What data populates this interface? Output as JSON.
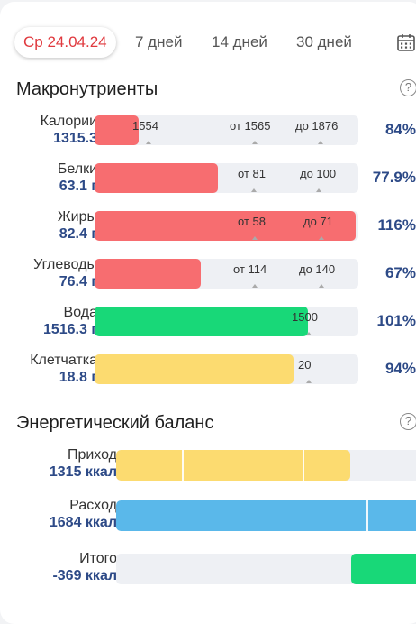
{
  "tabs": [
    {
      "label": "Ср 24.04.24",
      "active": true
    },
    {
      "label": "7 дней"
    },
    {
      "label": "14 дней"
    },
    {
      "label": "30 дней"
    }
  ],
  "macros": {
    "title": "Макронутриенты",
    "help": "?",
    "rows": [
      {
        "name": "Калории",
        "value": "1315.3",
        "percent": "84%",
        "progress": 0.84,
        "color": "#f76d70",
        "marks": [
          "1554",
          "от 1565",
          "до 1876"
        ]
      },
      {
        "name": "Белки",
        "value": "63.1 г",
        "percent": "77.9%",
        "progress": 0.779,
        "color": "#f76d70",
        "marks": [
          "от 81",
          "до 100"
        ]
      },
      {
        "name": "Жиры",
        "value": "82.4 г",
        "percent": "116%",
        "progress": 1.0,
        "color": "#f76d70",
        "marks": [
          "от 58",
          "до 71"
        ]
      },
      {
        "name": "Углеводы",
        "value": "76.4 г",
        "percent": "67%",
        "progress": 0.67,
        "color": "#f76d70",
        "marks": [
          "от 114",
          "до 140"
        ]
      },
      {
        "name": "Вода",
        "value": "1516.3 г",
        "percent": "101%",
        "progress": 1.01,
        "color": "#18d878",
        "marks": [
          "1500"
        ]
      },
      {
        "name": "Клетчатка",
        "value": "18.8 г",
        "percent": "94%",
        "progress": 0.94,
        "color": "#fcdb70",
        "marks": [
          "20"
        ]
      }
    ]
  },
  "energy": {
    "title": "Энергетический баланс",
    "help": "?",
    "rows": [
      {
        "name": "Приход",
        "value": "1315 ккал",
        "color": "#fcdb70"
      },
      {
        "name": "Расход",
        "value": "1684 ккал",
        "color": "#5ab8ea"
      },
      {
        "name": "Итого",
        "value": "-369 ккал",
        "color": "#18d878"
      }
    ]
  }
}
